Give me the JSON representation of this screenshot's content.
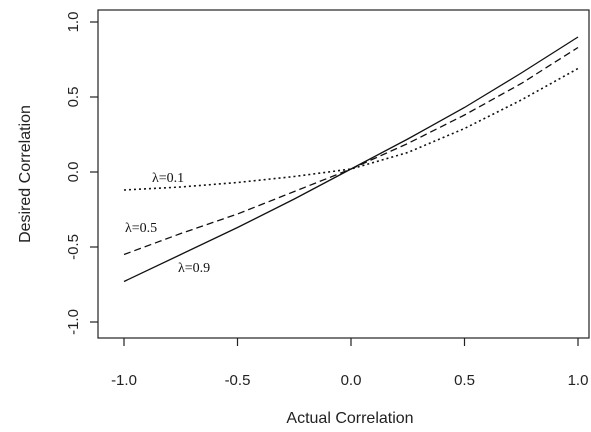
{
  "chart_data": {
    "type": "line",
    "xlabel": "Actual Correlation",
    "ylabel": "Desired Correlation",
    "xlim": [
      -1.0,
      1.0
    ],
    "ylim": [
      -1.0,
      1.0
    ],
    "xticks": [
      "-1.0",
      "-0.5",
      "0.0",
      "0.5",
      "1.0"
    ],
    "yticks": [
      "-1.0",
      "-0.5",
      "0.0",
      "0.5",
      "1.0"
    ],
    "grid": false,
    "x": [
      -1.0,
      -0.75,
      -0.5,
      -0.25,
      0.0,
      0.25,
      0.5,
      0.75,
      1.0
    ],
    "series": [
      {
        "style": "solid",
        "label": "λ=0.9",
        "values": [
          -0.73,
          -0.55,
          -0.37,
          -0.18,
          0.02,
          0.22,
          0.43,
          0.66,
          0.9
        ]
      },
      {
        "style": "dashed",
        "label": "λ=0.5",
        "values": [
          -0.55,
          -0.41,
          -0.28,
          -0.13,
          0.02,
          0.19,
          0.38,
          0.59,
          0.83
        ]
      },
      {
        "style": "dotted",
        "label": "λ=0.1",
        "values": [
          -0.12,
          -0.1,
          -0.07,
          -0.03,
          0.02,
          0.13,
          0.29,
          0.48,
          0.69
        ]
      }
    ]
  }
}
